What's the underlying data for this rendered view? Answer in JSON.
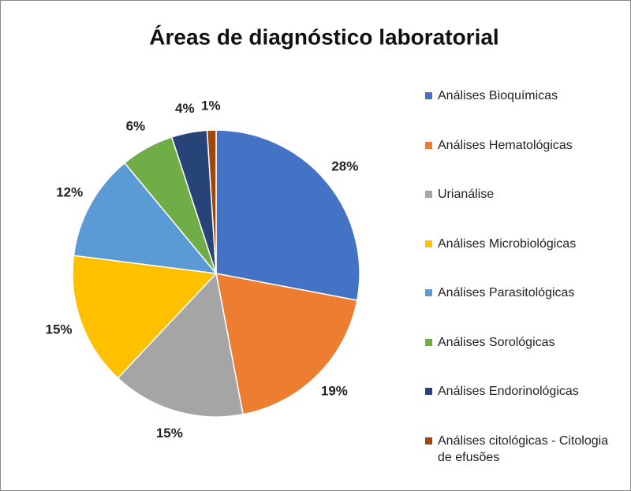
{
  "chart_data": {
    "type": "pie",
    "title": "Áreas de diagnóstico laboratorial",
    "categories": [
      "Análises Bioquímicas",
      "Análises Hematológicas",
      "Urianálise",
      "Análises Microbiológicas",
      "Análises Parasitológicas",
      "Análises Sorológicas",
      "Análises Endorinológicas",
      "Análises citológicas - Citologia de efusões"
    ],
    "values": [
      28,
      19,
      15,
      15,
      12,
      6,
      4,
      1
    ],
    "value_labels": [
      "28%",
      "19%",
      "15%",
      "15%",
      "12%",
      "6%",
      "4%",
      "1%"
    ],
    "colors": [
      "#4472c4",
      "#ed7d31",
      "#a5a5a5",
      "#ffc000",
      "#5b9bd5",
      "#70ad47",
      "#264478",
      "#9e480e"
    ],
    "legend": "right"
  }
}
